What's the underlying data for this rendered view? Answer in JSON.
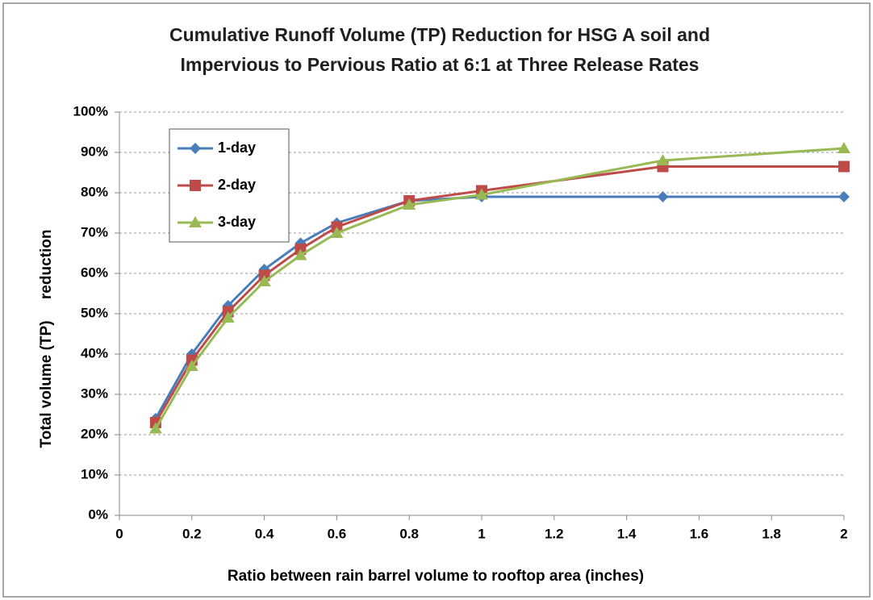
{
  "chart_data": {
    "type": "line",
    "title": [
      "Cumulative Runoff Volume (TP) Reduction for HSG A soil  and",
      "Impervious to Pervious Ratio at 6:1 at Three Release Rates"
    ],
    "x_label": "Ratio between rain barrel volume to rooftop area (inches)",
    "y_label": "Total volume (TP)     reduction",
    "x": [
      0.1,
      0.2,
      0.3,
      0.4,
      0.5,
      0.6,
      0.8,
      1,
      1.5,
      2
    ],
    "series": [
      {
        "name": "1-day",
        "color": "#4a7ebb",
        "marker": "diamond",
        "values": [
          24,
          40,
          52,
          61,
          67.5,
          72.5,
          78,
          79,
          79,
          79
        ]
      },
      {
        "name": "2-day",
        "color": "#be4b48",
        "marker": "square",
        "values": [
          23,
          38.5,
          50.5,
          59.5,
          66,
          71.5,
          78,
          80.5,
          86.5,
          86.5
        ]
      },
      {
        "name": "3-day",
        "color": "#98b954",
        "marker": "triangle",
        "values": [
          21.5,
          37,
          49,
          58,
          64.5,
          70,
          77,
          79.5,
          88,
          91
        ]
      }
    ],
    "xlim": [
      0,
      2
    ],
    "xticks": [
      0,
      0.2,
      0.4,
      0.6,
      0.8,
      1,
      1.2,
      1.4,
      1.6,
      1.8,
      2
    ],
    "ylim": [
      0,
      100
    ],
    "yticks": [
      {
        "value": 0,
        "label": "0%"
      },
      {
        "value": 10,
        "label": "10%"
      },
      {
        "value": 20,
        "label": "20%"
      },
      {
        "value": 30,
        "label": "30%"
      },
      {
        "value": 40,
        "label": "40%"
      },
      {
        "value": 50,
        "label": "50%"
      },
      {
        "value": 60,
        "label": "60%"
      },
      {
        "value": 70,
        "label": "70%"
      },
      {
        "value": 80,
        "label": "80%"
      },
      {
        "value": 90,
        "label": "90%"
      },
      {
        "value": 100,
        "label": "100%"
      }
    ],
    "grid": true,
    "legend": "upper left"
  }
}
